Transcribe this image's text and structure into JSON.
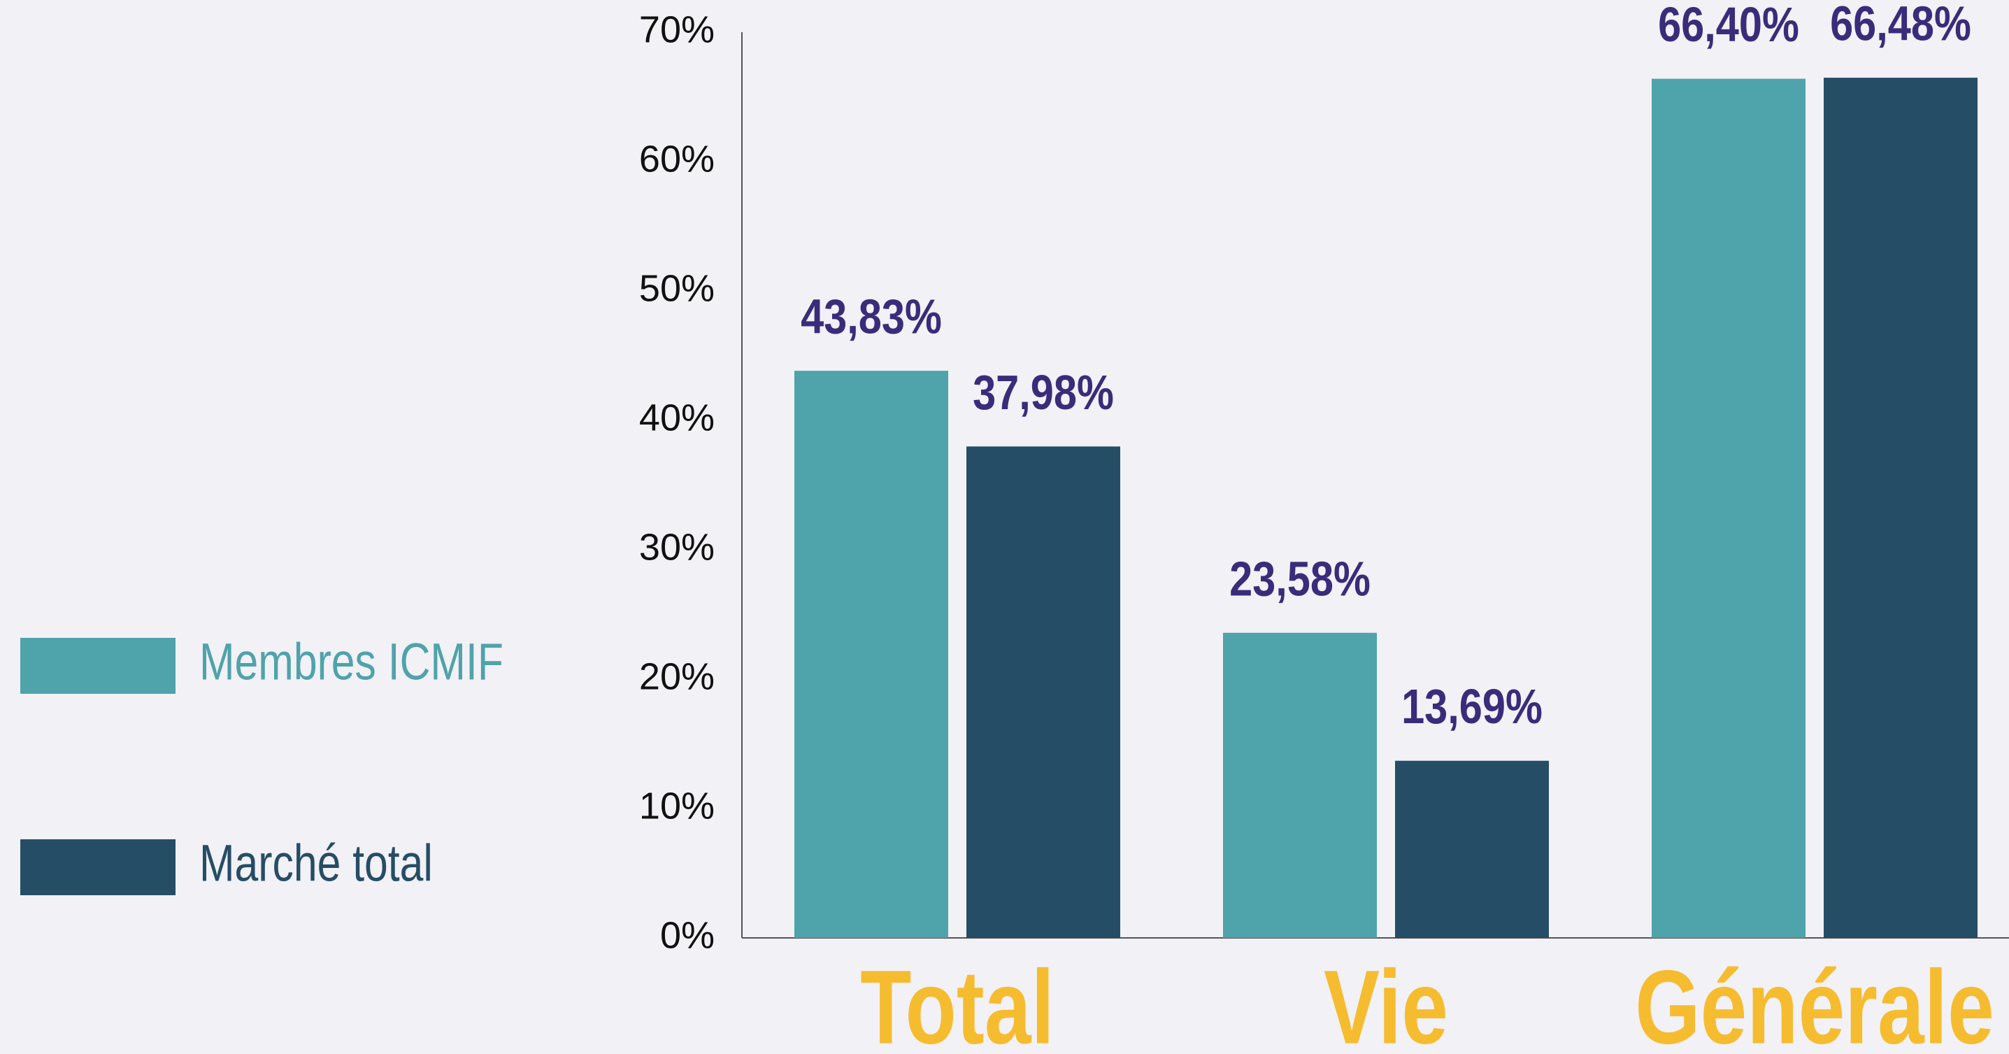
{
  "chart_data": {
    "type": "bar",
    "categories": [
      "Total",
      "Vie",
      "Générale"
    ],
    "series": [
      {
        "name": "Membres ICMIF",
        "color": "#4fa3aa",
        "values": [
          43.83,
          23.58,
          66.4
        ],
        "value_labels": [
          "43,83%",
          "23,58%",
          "66,40%"
        ]
      },
      {
        "name": "Marché total",
        "color": "#264d66",
        "values": [
          37.98,
          13.69,
          66.48
        ],
        "value_labels": [
          "37,98%",
          "13,69%",
          "66,48%"
        ]
      }
    ],
    "ylim": [
      0,
      70
    ],
    "yticks": [
      {
        "value": 0,
        "label": "0%"
      },
      {
        "value": 10,
        "label": "10%"
      },
      {
        "value": 20,
        "label": "20%"
      },
      {
        "value": 30,
        "label": "30%"
      },
      {
        "value": 40,
        "label": "40%"
      },
      {
        "value": 50,
        "label": "50%"
      },
      {
        "value": 60,
        "label": "60%"
      },
      {
        "value": 70,
        "label": "70%"
      }
    ],
    "grid": false,
    "legend": "left"
  }
}
